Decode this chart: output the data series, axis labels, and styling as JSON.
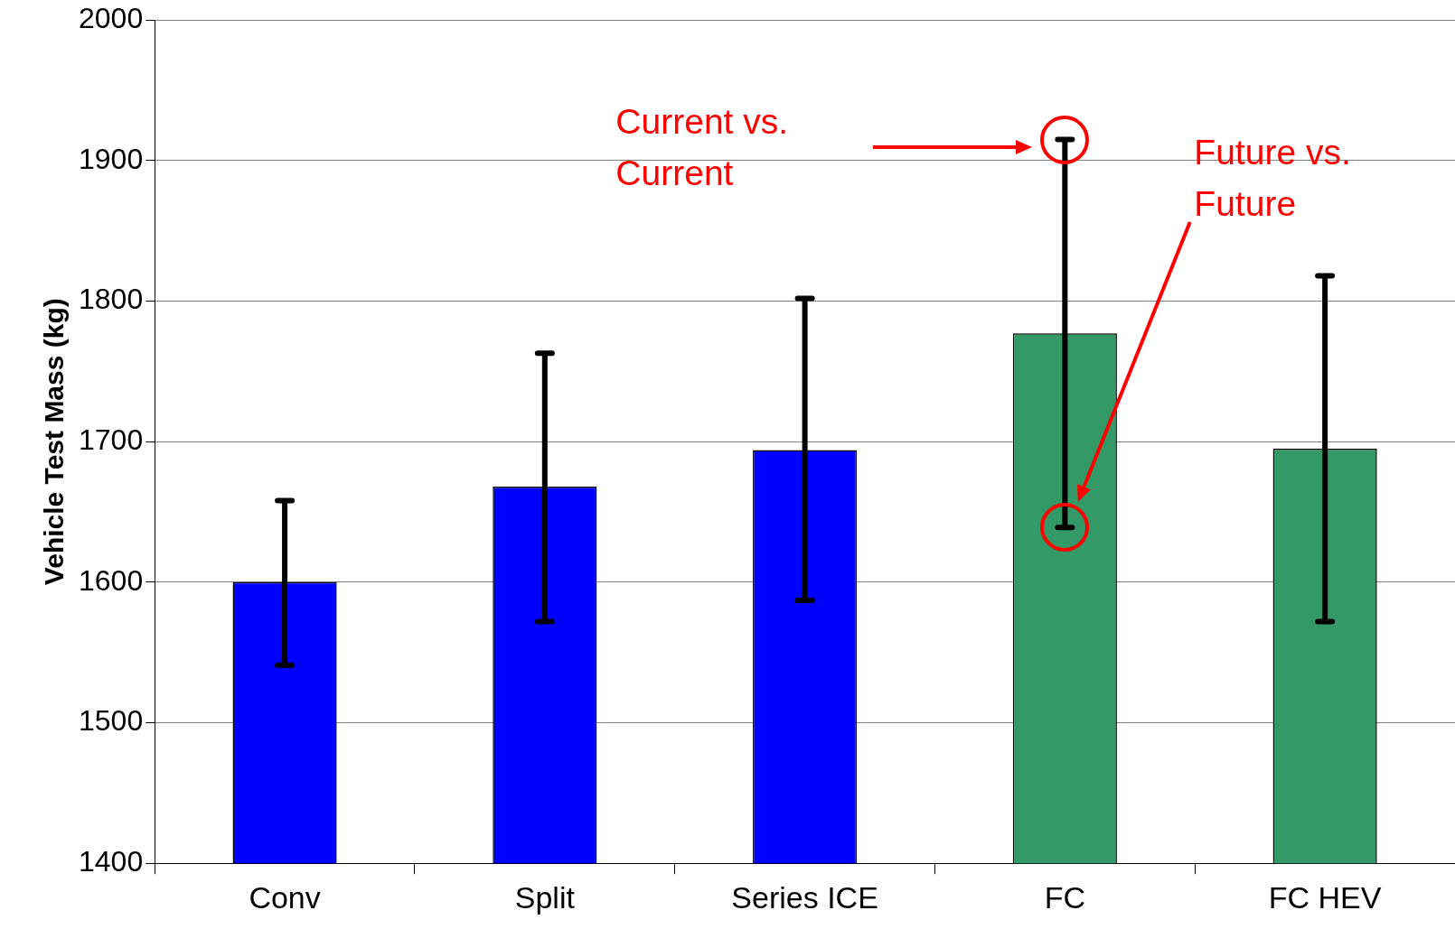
{
  "chart_data": {
    "type": "bar",
    "ylabel": "Vehicle Test Mass (kg)",
    "categories": [
      "Conv",
      "Split",
      "Series ICE",
      "FC",
      "FC HEV"
    ],
    "values": [
      1600,
      1668,
      1694,
      1777,
      1695
    ],
    "colors": [
      "#0000ff",
      "#0000ff",
      "#0000ff",
      "#339966",
      "#339966"
    ],
    "errors": [
      [
        1541,
        1658
      ],
      [
        1572,
        1763
      ],
      [
        1587,
        1802
      ],
      [
        1639,
        1915
      ],
      [
        1572,
        1818
      ]
    ],
    "ylim": [
      1400,
      2000
    ],
    "yticks": [
      1400,
      1500,
      1600,
      1700,
      1800,
      1900,
      2000
    ],
    "grid": "y",
    "legend": false,
    "annotations": [
      "Current vs. Current",
      "Future vs. Future"
    ]
  }
}
